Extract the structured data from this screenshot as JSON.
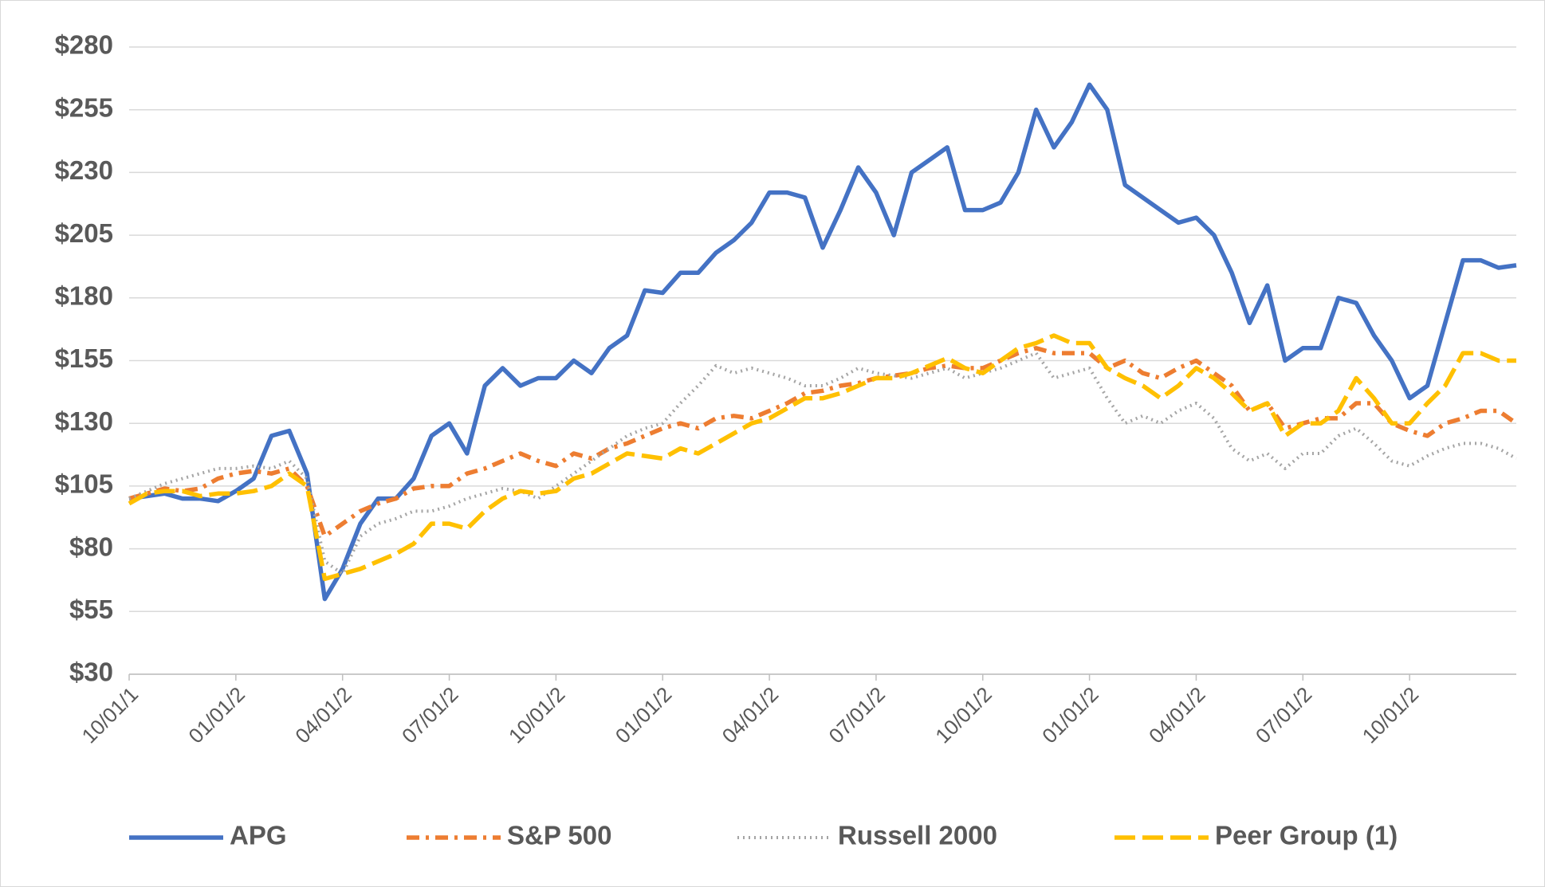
{
  "chart_data": {
    "type": "line",
    "categories": [
      "10/01/1",
      null,
      null,
      null,
      null,
      null,
      "01/01/2",
      null,
      null,
      null,
      null,
      null,
      "04/01/2",
      null,
      null,
      null,
      null,
      null,
      "07/01/2",
      null,
      null,
      null,
      null,
      null,
      "10/01/2",
      null,
      null,
      null,
      null,
      null,
      "01/01/2",
      null,
      null,
      null,
      null,
      null,
      "04/01/2",
      null,
      null,
      null,
      null,
      null,
      "07/01/2",
      null,
      null,
      null,
      null,
      null,
      "10/01/2",
      null,
      null,
      null,
      null,
      null,
      "01/01/2",
      null,
      null,
      null,
      null,
      null,
      "04/01/2",
      null,
      null,
      null,
      null,
      null,
      "07/01/2",
      null,
      null,
      null,
      null,
      null,
      "10/01/2",
      null,
      null,
      null,
      null,
      null,
      null
    ],
    "series": [
      {
        "name": "APG",
        "color": "#4472c4",
        "style": "solid",
        "values": [
          100,
          101,
          102,
          100,
          100,
          99,
          103,
          108,
          125,
          127,
          110,
          60,
          72,
          90,
          100,
          100,
          108,
          125,
          130,
          118,
          145,
          152,
          145,
          148,
          148,
          155,
          150,
          160,
          165,
          183,
          182,
          190,
          190,
          198,
          203,
          210,
          222,
          222,
          220,
          200,
          215,
          232,
          222,
          205,
          230,
          235,
          240,
          215,
          215,
          218,
          230,
          255,
          240,
          250,
          265,
          255,
          225,
          220,
          215,
          210,
          212,
          205,
          190,
          170,
          185,
          155,
          160,
          160,
          180,
          178,
          165,
          155,
          140,
          145,
          170,
          195,
          195,
          192,
          193
        ]
      },
      {
        "name": "S&P 500",
        "color": "#ed7d31",
        "style": "dashdot",
        "values": [
          100,
          102,
          104,
          103,
          104,
          108,
          110,
          111,
          110,
          112,
          105,
          85,
          90,
          95,
          98,
          100,
          104,
          105,
          105,
          110,
          112,
          115,
          118,
          115,
          113,
          118,
          116,
          120,
          122,
          125,
          128,
          130,
          128,
          132,
          133,
          132,
          135,
          138,
          142,
          143,
          145,
          146,
          148,
          149,
          150,
          152,
          153,
          152,
          152,
          155,
          158,
          160,
          158,
          158,
          158,
          152,
          155,
          150,
          148,
          152,
          155,
          150,
          145,
          135,
          138,
          128,
          130,
          132,
          132,
          138,
          138,
          130,
          127,
          125,
          130,
          132,
          135,
          135,
          130
        ]
      },
      {
        "name": "Russell 2000",
        "color": "#a5a5a5",
        "style": "dotted",
        "values": [
          100,
          103,
          106,
          108,
          110,
          112,
          112,
          113,
          112,
          115,
          108,
          75,
          70,
          85,
          90,
          92,
          95,
          95,
          97,
          100,
          102,
          104,
          103,
          100,
          105,
          110,
          115,
          120,
          125,
          128,
          130,
          138,
          145,
          153,
          150,
          152,
          150,
          148,
          145,
          145,
          148,
          152,
          150,
          149,
          148,
          150,
          152,
          148,
          150,
          152,
          155,
          158,
          148,
          150,
          152,
          140,
          130,
          133,
          130,
          135,
          138,
          132,
          120,
          115,
          118,
          112,
          118,
          118,
          125,
          128,
          122,
          115,
          113,
          117,
          120,
          122,
          122,
          120,
          116
        ]
      },
      {
        "name": "Peer Group (1)",
        "color": "#ffc000",
        "style": "dashed",
        "values": [
          98,
          102,
          103,
          103,
          101,
          102,
          102,
          103,
          105,
          110,
          105,
          68,
          70,
          72,
          75,
          78,
          82,
          90,
          90,
          88,
          95,
          100,
          103,
          102,
          103,
          108,
          110,
          114,
          118,
          117,
          116,
          120,
          118,
          122,
          126,
          130,
          132,
          136,
          140,
          140,
          142,
          145,
          148,
          148,
          150,
          153,
          156,
          152,
          150,
          155,
          160,
          162,
          165,
          162,
          162,
          152,
          148,
          145,
          140,
          145,
          152,
          148,
          142,
          135,
          138,
          125,
          130,
          130,
          135,
          148,
          140,
          130,
          130,
          138,
          145,
          158,
          158,
          155,
          155
        ]
      }
    ],
    "ylim": [
      30,
      280
    ],
    "yticks": [
      {
        "value": 30,
        "label": "$30"
      },
      {
        "value": 55,
        "label": "$55"
      },
      {
        "value": 80,
        "label": "$80"
      },
      {
        "value": 105,
        "label": "$105"
      },
      {
        "value": 130,
        "label": "$130"
      },
      {
        "value": 155,
        "label": "$155"
      },
      {
        "value": 180,
        "label": "$180"
      },
      {
        "value": 205,
        "label": "$205"
      },
      {
        "value": 230,
        "label": "$230"
      },
      {
        "value": 255,
        "label": "$255"
      },
      {
        "value": 280,
        "label": "$280"
      }
    ],
    "grid": true,
    "legend": "bottom"
  }
}
